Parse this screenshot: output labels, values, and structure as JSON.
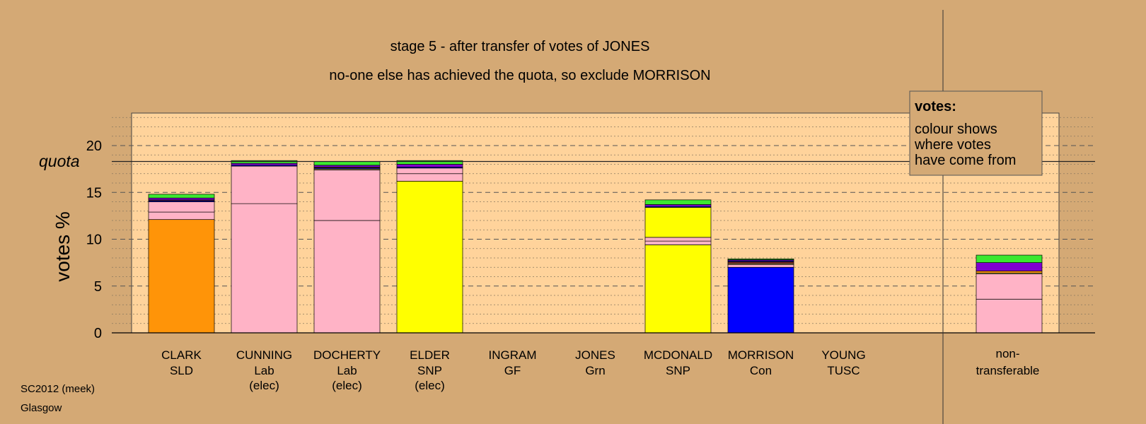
{
  "chart_data": {
    "type": "bar",
    "stacked": true,
    "title": "stage 5 - after transfer of votes of JONES",
    "subtitle": "no-one else has achieved the quota, so exclude MORRISON",
    "ylabel": "votes %",
    "ylim": [
      0,
      23.5
    ],
    "yticks": [
      0,
      5,
      10,
      15,
      20
    ],
    "quota": 18.3,
    "quota_label": "quota",
    "grid": true,
    "legend": {
      "placement": "top-right",
      "title": "votes:",
      "lines": [
        "colour shows",
        "where votes",
        "have come from"
      ]
    },
    "categories": [
      {
        "name": "CLARK",
        "party": "SLD",
        "status": ""
      },
      {
        "name": "CUNNING",
        "party": "Lab",
        "status": "(elec)"
      },
      {
        "name": "DOCHERTY",
        "party": "Lab",
        "status": "(elec)"
      },
      {
        "name": "ELDER",
        "party": "SNP",
        "status": "(elec)"
      },
      {
        "name": "INGRAM",
        "party": "GF",
        "status": ""
      },
      {
        "name": "JONES",
        "party": "Grn",
        "status": ""
      },
      {
        "name": "MCDONALD",
        "party": "SNP",
        "status": ""
      },
      {
        "name": "MORRISON",
        "party": "Con",
        "status": ""
      },
      {
        "name": "YOUNG",
        "party": "TUSC",
        "status": ""
      }
    ],
    "nontransferable": {
      "line1": "non-",
      "line2": "transferable"
    },
    "colors": {
      "SLD": "#FF9408",
      "Lab": "#FFB3C6",
      "SNP": "#FFFF00",
      "Con": "#0000FF",
      "TUSC": "#7B2B2B",
      "GF": "#8000D0",
      "Grn": "#3CE830",
      "misc": "#F0E060"
    },
    "bars": [
      [
        {
          "c": "SLD",
          "v": 12.1
        },
        {
          "c": "Lab",
          "v": 0.8
        },
        {
          "c": "Lab",
          "v": 1.1
        },
        {
          "c": "Con",
          "v": 0.1
        },
        {
          "c": "TUSC",
          "v": 0.1
        },
        {
          "c": "GF",
          "v": 0.2
        },
        {
          "c": "Grn",
          "v": 0.4
        }
      ],
      [
        {
          "c": "Lab",
          "v": 13.8
        },
        {
          "c": "Lab",
          "v": 4.0
        },
        {
          "c": "Con",
          "v": 0.1
        },
        {
          "c": "GF",
          "v": 0.2
        },
        {
          "c": "Grn",
          "v": 0.3
        }
      ],
      [
        {
          "c": "Lab",
          "v": 12.0
        },
        {
          "c": "Lab",
          "v": 5.4
        },
        {
          "c": "misc",
          "v": 0.1
        },
        {
          "c": "Con",
          "v": 0.1
        },
        {
          "c": "TUSC",
          "v": 0.1
        },
        {
          "c": "GF",
          "v": 0.2
        },
        {
          "c": "Grn",
          "v": 0.4
        }
      ],
      [
        {
          "c": "SNP",
          "v": 16.2
        },
        {
          "c": "Lab",
          "v": 0.8
        },
        {
          "c": "Lab",
          "v": 0.6
        },
        {
          "c": "Con",
          "v": 0.1
        },
        {
          "c": "GF",
          "v": 0.3
        },
        {
          "c": "Grn",
          "v": 0.4
        }
      ],
      [],
      [],
      [
        {
          "c": "SNP",
          "v": 9.4
        },
        {
          "c": "Lab",
          "v": 0.4
        },
        {
          "c": "Lab",
          "v": 0.4
        },
        {
          "c": "SNP",
          "v": 3.2
        },
        {
          "c": "Con",
          "v": 0.1
        },
        {
          "c": "GF",
          "v": 0.2
        },
        {
          "c": "Grn",
          "v": 0.5
        }
      ],
      [
        {
          "c": "Con",
          "v": 7.0
        },
        {
          "c": "Lab",
          "v": 0.3
        },
        {
          "c": "misc",
          "v": 0.1
        },
        {
          "c": "TUSC",
          "v": 0.2
        },
        {
          "c": "Con",
          "v": 0.1
        },
        {
          "c": "GF",
          "v": 0.1
        },
        {
          "c": "Grn",
          "v": 0.1
        }
      ],
      []
    ],
    "nontransferable_bar": [
      {
        "c": "Lab",
        "v": 3.6
      },
      {
        "c": "Lab",
        "v": 2.7
      },
      {
        "c": "misc",
        "v": 0.1
      },
      {
        "c": "SLD",
        "v": 0.2
      },
      {
        "c": "GF",
        "v": 0.9
      },
      {
        "c": "Grn",
        "v": 0.8
      }
    ]
  },
  "footer": {
    "line1": "SC2012 (meek)",
    "line2": "Glasgow"
  }
}
